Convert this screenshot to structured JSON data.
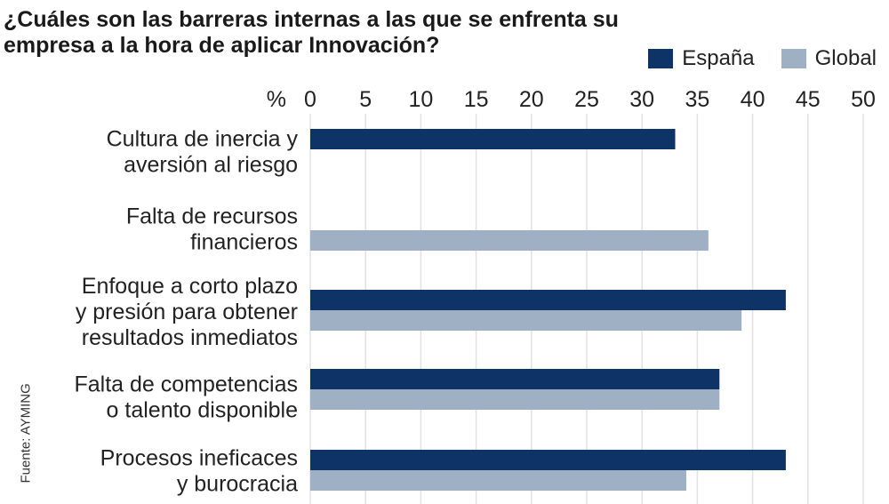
{
  "title": "¿Cuáles son las barreras internas a las que se enfrenta su empresa a la hora de aplicar Innovación?",
  "source": "Fuente: AYMING",
  "colors": {
    "espana": "#0e3366",
    "global": "#9fb0c5",
    "grid": "#e2e2e2"
  },
  "chart_data": {
    "type": "bar",
    "orientation": "horizontal",
    "axis_unit_label": "%",
    "xlim": [
      0,
      50
    ],
    "ticks": [
      0,
      5,
      10,
      15,
      20,
      25,
      30,
      35,
      40,
      45,
      50
    ],
    "grid": true,
    "legend": "top-right",
    "categories": [
      [
        "Cultura de inercia y",
        "aversión al riesgo"
      ],
      [
        "Falta de recursos",
        "financieros"
      ],
      [
        "Enfoque a corto plazo",
        "y presión para obtener",
        "resultados inmediatos"
      ],
      [
        "Falta de competencias",
        "o talento disponible"
      ],
      [
        "Procesos ineficaces",
        "y burocracia"
      ]
    ],
    "series": [
      {
        "name": "España",
        "values": [
          33,
          null,
          43,
          37,
          43
        ]
      },
      {
        "name": "Global",
        "values": [
          null,
          36,
          39,
          37,
          34
        ]
      }
    ]
  }
}
